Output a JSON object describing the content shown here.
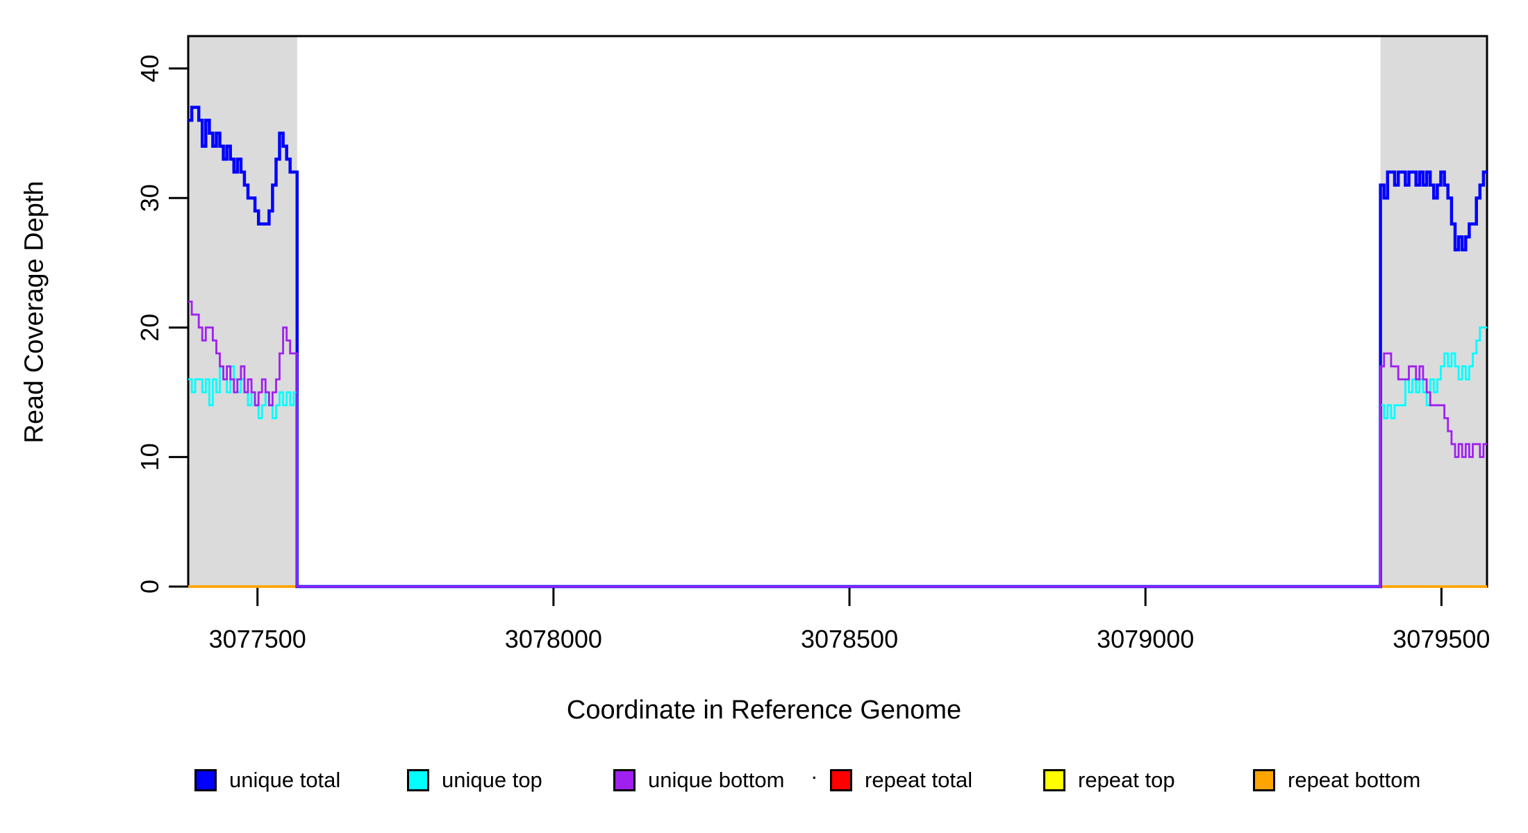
{
  "figure": {
    "background": "#ffffff"
  },
  "chart_data": {
    "type": "line",
    "style": "step-coverage-plot",
    "title": "",
    "xlabel": "Coordinate in Reference Genome",
    "ylabel": "Read Coverage Depth",
    "grid": false,
    "x_axis": {
      "range": [
        3077383,
        3079577
      ],
      "ticks": [
        3077500,
        3078000,
        3078500,
        3079000,
        3079500
      ],
      "tick_labels": [
        "3077500",
        "3078000",
        "3078500",
        "3079000",
        "3079500"
      ]
    },
    "y_axis": {
      "range": [
        0,
        42.5
      ],
      "ticks": [
        0,
        10,
        20,
        30,
        40
      ],
      "tick_labels": [
        "0",
        "10",
        "20",
        "30",
        "40"
      ]
    },
    "shaded_regions": {
      "color": "#DBDBDB",
      "regions": [
        {
          "x_start": 3077383,
          "x_end": 3077567
        },
        {
          "x_start": 3079397,
          "x_end": 3079577
        }
      ]
    },
    "series": [
      {
        "name": "unique total",
        "color": "#0000FF",
        "width": 4.5,
        "baseline": false,
        "segments": [
          {
            "x_start": 3077383,
            "x_end": 3077567,
            "rise": false,
            "drop": true,
            "values": [
              36,
              37,
              37,
              36,
              34,
              36,
              35,
              34,
              35,
              34,
              33,
              34,
              33,
              32,
              33,
              32,
              31,
              30,
              30,
              29,
              28,
              28,
              28,
              29,
              31,
              33,
              35,
              34,
              33,
              32,
              32
            ]
          },
          {
            "x_start": 3079397,
            "x_end": 3079577,
            "rise": true,
            "drop": false,
            "values": [
              31,
              30,
              32,
              32,
              31,
              32,
              32,
              31,
              32,
              32,
              31,
              32,
              31,
              32,
              31,
              30,
              31,
              32,
              31,
              30,
              28,
              26,
              27,
              26,
              27,
              28,
              28,
              30,
              31,
              32
            ]
          }
        ]
      },
      {
        "name": "unique top",
        "color": "#00FFFF",
        "width": 2.8,
        "baseline": false,
        "segments": [
          {
            "x_start": 3077383,
            "x_end": 3077567,
            "rise": false,
            "drop": true,
            "values": [
              16,
              15,
              16,
              16,
              15,
              16,
              14,
              16,
              15,
              17,
              16,
              15,
              17,
              16,
              15,
              16,
              15,
              14,
              15,
              14,
              13,
              14,
              15,
              14,
              13,
              14,
              15,
              14,
              15,
              14,
              15
            ]
          },
          {
            "x_start": 3079397,
            "x_end": 3079577,
            "rise": true,
            "drop": false,
            "values": [
              14,
              13,
              14,
              13,
              14,
              14,
              14,
              16,
              15,
              16,
              15,
              16,
              15,
              14,
              16,
              15,
              16,
              17,
              18,
              17,
              18,
              17,
              16,
              17,
              16,
              17,
              18,
              19,
              20,
              20
            ]
          }
        ]
      },
      {
        "name": "unique bottom",
        "color": "#A020F0",
        "width": 2.8,
        "baseline": false,
        "segments": [
          {
            "x_start": 3077383,
            "x_end": 3077567,
            "rise": false,
            "drop": true,
            "values": [
              22,
              21,
              21,
              20,
              19,
              20,
              20,
              19,
              18,
              17,
              16,
              17,
              16,
              15,
              16,
              17,
              15,
              16,
              15,
              14,
              15,
              16,
              15,
              14,
              15,
              16,
              18,
              20,
              19,
              18,
              18
            ]
          },
          {
            "x_start": 3079397,
            "x_end": 3079577,
            "rise": true,
            "drop": false,
            "values": [
              17,
              18,
              18,
              17,
              17,
              16,
              16,
              16,
              17,
              17,
              16,
              17,
              16,
              15,
              14,
              14,
              14,
              14,
              13,
              12,
              11,
              10,
              11,
              10,
              11,
              10,
              11,
              11,
              10,
              11
            ]
          }
        ]
      },
      {
        "name": "repeat total",
        "color": "#FF0000",
        "width": 3.5,
        "baseline": true,
        "segments": []
      },
      {
        "name": "repeat top",
        "color": "#FFFF00",
        "width": 3.5,
        "baseline": true,
        "segments": []
      },
      {
        "name": "repeat bottom",
        "color": "#FFA500",
        "width": 3.5,
        "baseline": true,
        "segments": []
      }
    ]
  },
  "legend": {
    "title": ".",
    "items": [
      {
        "label": "unique total",
        "color": "#0000FF"
      },
      {
        "label": "unique top",
        "color": "#00FFFF"
      },
      {
        "label": "unique bottom",
        "color": "#A020F0"
      },
      {
        "label": "repeat total",
        "color": "#FF0000"
      },
      {
        "label": "repeat top",
        "color": "#FFFF00"
      },
      {
        "label": "repeat bottom",
        "color": "#FFA500"
      }
    ]
  }
}
